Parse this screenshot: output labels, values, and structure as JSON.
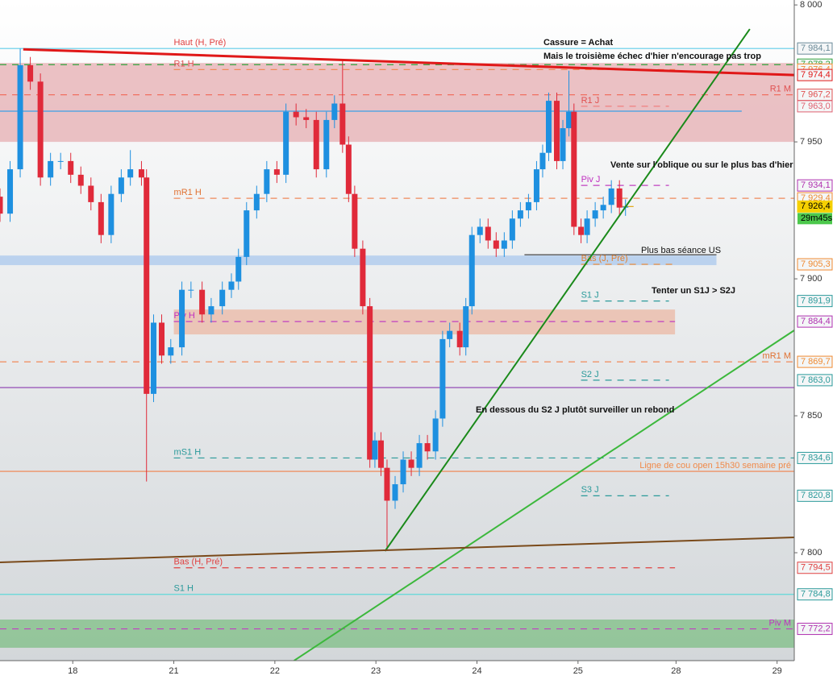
{
  "chart_data": {
    "type": "candlestick",
    "xlim": [
      -0.72,
      7.14
    ],
    "ylim": [
      7760.6,
      8001.8
    ],
    "xticks": [
      {
        "value": 0,
        "label": "18"
      },
      {
        "value": 1,
        "label": "21"
      },
      {
        "value": 2,
        "label": "22"
      },
      {
        "value": 3,
        "label": "23"
      },
      {
        "value": 4,
        "label": "24"
      },
      {
        "value": 5,
        "label": "25"
      },
      {
        "value": 5.97,
        "label": "28"
      },
      {
        "value": 6.97,
        "label": "29"
      }
    ],
    "yticks": [
      {
        "value": 8000,
        "label": "8 000"
      },
      {
        "value": 7950,
        "label": "7 950"
      },
      {
        "value": 7900,
        "label": "7 900"
      },
      {
        "value": 7850,
        "label": "7 850"
      },
      {
        "value": 7800,
        "label": "7 800"
      }
    ],
    "up_color": "#1e90e0",
    "down_color": "#e02a3a",
    "x": [
      -0.72,
      -0.62,
      -0.52,
      -0.42,
      -0.32,
      -0.22,
      -0.12,
      -0.02,
      0.08,
      0.18,
      0.28,
      0.38,
      0.48,
      0.57,
      0.68,
      0.73,
      0.8,
      0.88,
      0.97,
      1.08,
      1.17,
      1.28,
      1.37,
      1.48,
      1.57,
      1.64,
      1.72,
      1.82,
      1.92,
      2.02,
      2.11,
      2.21,
      2.31,
      2.41,
      2.51,
      2.59,
      2.67,
      2.73,
      2.79,
      2.87,
      2.94,
      2.99,
      3.05,
      3.11,
      3.19,
      3.27,
      3.35,
      3.43,
      3.51,
      3.59,
      3.66,
      3.73,
      3.83,
      3.89,
      3.95,
      4.03,
      4.11,
      4.19,
      4.27,
      4.35,
      4.43,
      4.51,
      4.59,
      4.65,
      4.71,
      4.79,
      4.85,
      4.91,
      4.96,
      5.03,
      5.09,
      5.17,
      5.25,
      5.33,
      5.41,
      5.47
    ],
    "open": [
      7930,
      7923.8,
      7940,
      7978,
      7972,
      7937,
      7943,
      7943,
      7938,
      7934,
      7928,
      7916,
      7931,
      7937,
      7940,
      7937,
      7858,
      7884,
      7872,
      7875,
      7896,
      7896,
      7887,
      7890,
      7896,
      7899,
      7908,
      7925,
      7931,
      7940,
      7938,
      7961,
      7959,
      7958,
      7940,
      7958,
      7964,
      7949,
      7931,
      7911,
      7890,
      7834,
      7841,
      7831,
      7819,
      7825,
      7834,
      7831,
      7840,
      7837,
      7849,
      7878,
      7881,
      7875,
      7890,
      7916,
      7919,
      7914,
      7911,
      7914,
      7922,
      7925,
      7928,
      7940,
      7946,
      7965,
      7943,
      7955,
      7961,
      7919,
      7916,
      7922,
      7925,
      7927,
      7933,
      7926
    ],
    "high": [
      7933,
      7943,
      7984,
      7981,
      7975,
      7946,
      7946,
      7946,
      7941,
      7937,
      7931,
      7934,
      7940,
      7947,
      7943,
      7940,
      7887,
      7887,
      7878,
      7899,
      7899,
      7899,
      7893,
      7899,
      7902,
      7911,
      7928,
      7934,
      7943,
      7943,
      7964,
      7964,
      7962,
      7961,
      7961,
      7967,
      7980,
      7952,
      7934,
      7914,
      7893,
      7844,
      7844,
      7834,
      7828,
      7837,
      7837,
      7843,
      7843,
      7852,
      7881,
      7884,
      7884,
      7893,
      7919,
      7922,
      7922,
      7917,
      7917,
      7925,
      7928,
      7931,
      7943,
      7949,
      7968,
      7968,
      7958,
      7976,
      7964,
      7922,
      7925,
      7928,
      7930,
      7936,
      7936,
      7929
    ],
    "low": [
      7920.8,
      7920.8,
      7937,
      7969,
      7934,
      7934,
      7940,
      7935,
      7931,
      7925,
      7913,
      7913,
      7928,
      7934,
      7934,
      7826,
      7855,
      7869,
      7869,
      7872,
      7893,
      7884,
      7884,
      7887,
      7893,
      7896,
      7905,
      7922,
      7928,
      7935,
      7935,
      7956,
      7955,
      7937,
      7937,
      7955,
      7946,
      7928,
      7908,
      7887,
      7831,
      7831,
      7828,
      7800.6,
      7816,
      7822,
      7828,
      7828,
      7834,
      7834,
      7846,
      7875,
      7872,
      7872,
      7887,
      7913,
      7911,
      7908,
      7908,
      7911,
      7919,
      7922,
      7925,
      7937,
      7943,
      7940,
      7940,
      7952,
      7916,
      7913,
      7913,
      7919,
      7922,
      7924,
      7923,
      7923
    ],
    "close": [
      7923.8,
      7940,
      7978,
      7972,
      7937,
      7943,
      7943,
      7938,
      7934,
      7928,
      7916,
      7931,
      7937,
      7940,
      7937,
      7858,
      7884,
      7872,
      7875,
      7896,
      7896,
      7887,
      7890,
      7896,
      7899,
      7908,
      7925,
      7931,
      7940,
      7938,
      7961,
      7959,
      7958,
      7940,
      7958,
      7964,
      7949,
      7931,
      7911,
      7890,
      7834,
      7841,
      7831,
      7819,
      7825,
      7834,
      7831,
      7840,
      7837,
      7849,
      7878,
      7881,
      7875,
      7890,
      7916,
      7919,
      7914,
      7911,
      7914,
      7922,
      7925,
      7928,
      7940,
      7946,
      7965,
      7943,
      7955,
      7961,
      7919,
      7916,
      7922,
      7925,
      7927,
      7933,
      7926,
      7926.4
    ],
    "zones": [
      {
        "y": [
          7950,
          7978.8
        ],
        "x": [
          -0.72,
          7.14
        ],
        "color": "#e6aeb2"
      },
      {
        "y": [
          7905,
          7908.5
        ],
        "x": [
          -0.72,
          6.37
        ],
        "color": "#a9c8ee"
      },
      {
        "y": [
          7879.7,
          7888.8
        ],
        "x": [
          1.0,
          5.96
        ],
        "color": "#ebb8a4"
      },
      {
        "y": [
          7765.3,
          7775.6
        ],
        "x": [
          -0.72,
          7.14
        ],
        "color": "#7fbf86"
      }
    ],
    "levels": [
      {
        "name": "Haut (H, Pré)",
        "group": "H",
        "value": 7984.1,
        "value_label": "7 984,1",
        "x": [
          -0.72,
          7.14
        ],
        "color": "#5fcbe8",
        "style": "solid",
        "label_color": "#e04040",
        "tag_color": "#6a8a98"
      },
      {
        "value": 7978.2,
        "value_label": "7 978,2",
        "x": [
          -0.72,
          7.14
        ],
        "color": "#2fa23c",
        "style": "dash",
        "tag_color": "#2fa23c"
      },
      {
        "name": "R1 H",
        "group": "H",
        "value": 7976.4,
        "value_label": "7 976,4",
        "x": [
          1.0,
          5.96
        ],
        "color": "#f08a5a",
        "style": "dash",
        "label_color": "#e05050",
        "tag_color": "#f08a30"
      },
      {
        "name": "R1 M",
        "group": "M",
        "value": 7967.2,
        "value_label": "7 967,2",
        "x": [
          -0.72,
          7.14
        ],
        "color": "#f07060",
        "style": "dash",
        "label_color": "#e05050",
        "tag_color": "#e05050"
      },
      {
        "name": "R1 J",
        "group": "J",
        "value": 7963.0,
        "value_label": "7 963,0",
        "x": [
          5.03,
          5.9
        ],
        "color": "#f08080",
        "style": "dash",
        "label_color": "#e05050",
        "tag_color": "#e06070"
      },
      {
        "value": 7961.2,
        "x": [
          -0.72,
          6.62
        ],
        "color": "#3aa0e8",
        "style": "solid"
      },
      {
        "name": "Piv J",
        "group": "J",
        "value": 7934.1,
        "value_label": "7 934,1",
        "x": [
          5.03,
          5.9
        ],
        "color": "#c040c0",
        "style": "dash",
        "label_color": "#c030c0",
        "tag_color": "#b030b0"
      },
      {
        "name": "mR1 H",
        "group": "H",
        "value": 7929.4,
        "value_label": "7 929,4",
        "x": [
          1.0,
          7.14
        ],
        "color": "#f08a5a",
        "style": "dash",
        "label_color": "#e07030",
        "tag_color": "#f08a30"
      },
      {
        "value": 7926.4,
        "value_label": "7 926,4",
        "countdown": "29m45s",
        "x": [
          5.41,
          5.55
        ],
        "color": "#e0a000",
        "style": "solid",
        "tag_color": "#f5d000"
      },
      {
        "value": 7908.8,
        "x": [
          4.47,
          6.37
        ],
        "color": "#333333",
        "style": "solid"
      },
      {
        "name": "Bas (J, Pré)",
        "group": "J",
        "value": 7905.3,
        "value_label": "7 905,3",
        "x": [
          5.03,
          5.96
        ],
        "color": "#f08a30",
        "style": "dash",
        "label_color": "#e08030",
        "tag_color": "#f08a30"
      },
      {
        "name": "S1 J",
        "group": "J",
        "value": 7891.9,
        "value_label": "7 891,9",
        "x": [
          5.03,
          5.9
        ],
        "color": "#2a9a9a",
        "style": "dash",
        "label_color": "#2a9a9a",
        "tag_color": "#2a9a9a"
      },
      {
        "name": "Piv H",
        "group": "H",
        "value": 7884.4,
        "value_label": "7 884,4",
        "x": [
          1.0,
          5.96
        ],
        "color": "#c040c0",
        "style": "dash",
        "label_color": "#c030c0",
        "tag_color": "#b030b0"
      },
      {
        "name": "mR1 M",
        "group": "M",
        "value": 7869.7,
        "value_label": "7 869,7",
        "x": [
          -0.72,
          7.14
        ],
        "color": "#f08a5a",
        "style": "dash",
        "label_color": "#e07030",
        "tag_color": "#f08a30"
      },
      {
        "name": "S2 J",
        "group": "J",
        "value": 7863.0,
        "value_label": "7 863,0",
        "x": [
          5.03,
          5.9
        ],
        "color": "#2a9a9a",
        "style": "dash",
        "label_color": "#2a9a9a",
        "tag_color": "#2a9a9a"
      },
      {
        "value": 7860.3,
        "x": [
          -0.72,
          7.14
        ],
        "color": "#8a3ab0",
        "style": "solid"
      },
      {
        "name": "mS1 H",
        "group": "H",
        "value": 7834.6,
        "value_label": "7 834,6",
        "x": [
          1.0,
          7.14
        ],
        "color": "#2a9a9a",
        "style": "dash",
        "label_color": "#2a9a9a",
        "tag_color": "#2a9a9a"
      },
      {
        "name": "Ligne de cou open 15h30 semaine pré",
        "group": "M",
        "value": 7829.7,
        "x": [
          -0.72,
          7.14
        ],
        "color": "#f0804a",
        "style": "solid",
        "label_color": "#f08a4a"
      },
      {
        "name": "S3 J",
        "group": "J",
        "value": 7820.8,
        "value_label": "7 820,8",
        "x": [
          5.03,
          5.9
        ],
        "color": "#2a9a9a",
        "style": "dash",
        "label_color": "#2a9a9a",
        "tag_color": "#2a9a9a"
      },
      {
        "name": "Bas (H, Pré)",
        "group": "H",
        "value": 7794.5,
        "value_label": "7 794,5",
        "x": [
          1.0,
          5.96
        ],
        "color": "#e04040",
        "style": "dash",
        "label_color": "#e04040",
        "tag_color": "#e04040"
      },
      {
        "name": "S1 H",
        "group": "H",
        "value": 7784.8,
        "value_label": "7 784,8",
        "x": [
          -0.72,
          7.14
        ],
        "color": "#5fd8d8",
        "style": "solid",
        "label_color": "#2a9a9a",
        "tag_color": "#2a9a9a"
      },
      {
        "name": "Piv M",
        "group": "M",
        "value": 7772.2,
        "value_label": "7 772,2",
        "x": [
          -0.72,
          7.14
        ],
        "color": "#c040c0",
        "style": "dash",
        "label_color": "#c030c0",
        "tag_color": "#b030b0"
      }
    ],
    "trendlines": [
      {
        "x": [
          -0.49,
          7.14
        ],
        "y": [
          7983.8,
          7974.4
        ],
        "color": "#e01818",
        "width": 3,
        "tag": {
          "value": 7974.4,
          "label": "7 974,4"
        }
      },
      {
        "x": [
          3.09,
          6.7
        ],
        "y": [
          7800.6,
          7991.2
        ],
        "color": "#1a8a1a",
        "width": 2
      },
      {
        "x": [
          2.19,
          7.14
        ],
        "y": [
          7760.6,
          7881.2
        ],
        "color": "#3cb83c",
        "width": 2
      },
      {
        "x": [
          -0.72,
          7.14
        ],
        "y": [
          7796.5,
          7805.6
        ],
        "color": "#7a4a1a",
        "width": 2
      }
    ],
    "annotations": [
      "Cassure = Achat",
      "Mais le troisième échec d'hier n'encourage pas trop",
      "Vente sur l'oblique ou sur le plus bas d'hier",
      "Plus bas séance US",
      "Tenter un S1J > S2J",
      "En dessous du S2 J plutôt surveiller un rebond"
    ]
  }
}
